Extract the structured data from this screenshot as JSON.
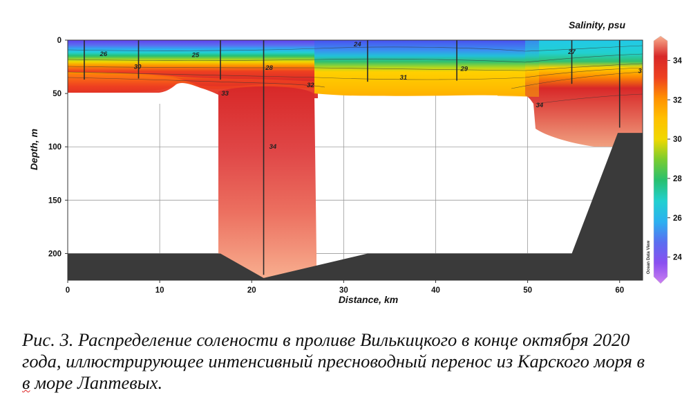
{
  "chart_data": {
    "type": "heatmap",
    "title": "Salinity, psu",
    "xlabel": "Distance, km",
    "ylabel": "Depth, m",
    "xlim": [
      0,
      62.5
    ],
    "ylim": [
      225,
      0
    ],
    "x_ticks": [
      "0",
      "10",
      "20",
      "30",
      "40",
      "50",
      "60"
    ],
    "y_ticks": [
      "0",
      "50",
      "100",
      "150",
      "200"
    ],
    "grid": true,
    "colorbar": {
      "range": [
        23,
        35
      ],
      "ticks": [
        "24",
        "26",
        "28",
        "30",
        "32",
        "34"
      ],
      "colors": {
        "23": "#cc80f0",
        "24": "#8a4ff0",
        "25": "#5a6ef0",
        "26": "#2cb0f0",
        "27": "#22d0d0",
        "28": "#28c070",
        "29": "#78cc30",
        "30": "#f0d800",
        "31": "#ffc000",
        "32": "#ff9000",
        "33": "#ee4020",
        "34": "#d82828",
        "35": "#f8b090"
      }
    },
    "stations_km": [
      1.8,
      7.7,
      16.6,
      21.3,
      32.6,
      42.3,
      54.8,
      60.0
    ],
    "station_bottom_m": [
      37,
      36,
      37,
      220,
      39,
      38,
      41,
      82
    ],
    "bottom_profile": {
      "x": [
        0,
        16.6,
        21.3,
        32.6,
        54.8,
        59.8,
        62.5
      ],
      "depth": [
        200,
        200,
        223,
        200,
        200,
        87,
        87
      ]
    },
    "contour_labels": [
      {
        "text": "26",
        "x": 3.9,
        "depth": 13
      },
      {
        "text": "25",
        "x": 13.9,
        "depth": 14
      },
      {
        "text": "24",
        "x": 31.5,
        "depth": 4
      },
      {
        "text": "27",
        "x": 54.8,
        "depth": 11
      },
      {
        "text": "30",
        "x": 7.6,
        "depth": 25
      },
      {
        "text": "28",
        "x": 21.9,
        "depth": 26
      },
      {
        "text": "29",
        "x": 43.1,
        "depth": 27
      },
      {
        "text": "31",
        "x": 36.5,
        "depth": 35
      },
      {
        "text": "32",
        "x": 26.4,
        "depth": 42
      },
      {
        "text": "33",
        "x": 17.1,
        "depth": 50
      },
      {
        "text": "34",
        "x": 22.3,
        "depth": 100
      },
      {
        "text": "34",
        "x": 51.3,
        "depth": 61
      },
      {
        "text": "3",
        "x": 62.2,
        "depth": 29
      }
    ],
    "branding": "Ocean Data View"
  },
  "caption": {
    "line1": "Рис. 3. Распределение солености в проливе Вилькицкого в конце октября 2020",
    "line2": "года, иллюстрирующее интенсивный пресноводный перенос из Карского моря в",
    "line3_prefix": "в",
    "line3_rest": " море Лаптевых."
  }
}
